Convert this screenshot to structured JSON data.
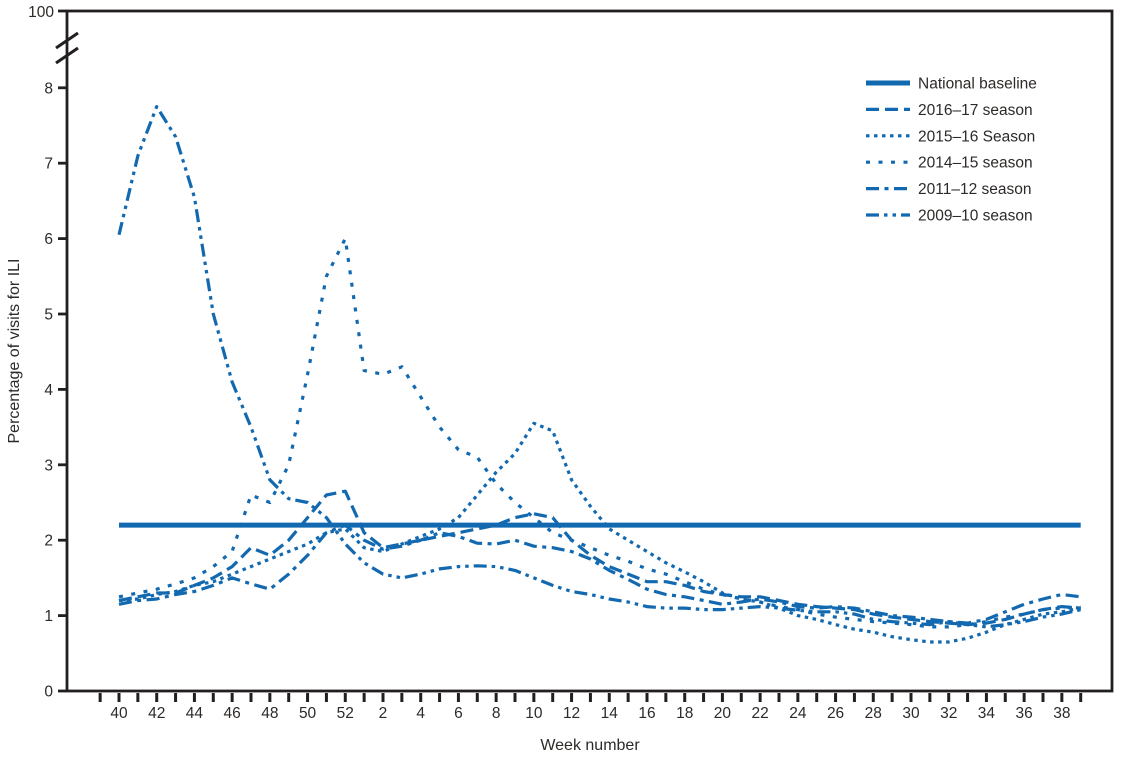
{
  "chart_data": {
    "type": "line",
    "xlabel": "Week number",
    "ylabel": "Percentage of visits for ILI",
    "y_axis_break_top_label": "100",
    "y_ticks": [
      0,
      1,
      2,
      3,
      4,
      5,
      6,
      7,
      8
    ],
    "ylim": [
      0,
      8.6
    ],
    "weeks": [
      "40",
      "41",
      "42",
      "43",
      "44",
      "45",
      "46",
      "47",
      "48",
      "49",
      "50",
      "51",
      "52",
      "1",
      "2",
      "3",
      "4",
      "5",
      "6",
      "7",
      "8",
      "9",
      "10",
      "11",
      "12",
      "13",
      "14",
      "15",
      "16",
      "17",
      "18",
      "19",
      "20",
      "21",
      "22",
      "23",
      "24",
      "25",
      "26",
      "27",
      "28",
      "29",
      "30",
      "31",
      "32",
      "33",
      "34",
      "35",
      "36",
      "37",
      "38",
      "39"
    ],
    "x_tick_labels": [
      "40",
      "42",
      "44",
      "46",
      "48",
      "50",
      "52",
      "2",
      "4",
      "6",
      "8",
      "10",
      "12",
      "14",
      "16",
      "18",
      "20",
      "22",
      "24",
      "26",
      "28",
      "30",
      "32",
      "34",
      "36",
      "38"
    ],
    "legend_position": "top-right",
    "grid": false,
    "colors": {
      "line": "#1269b0",
      "axis": "#231f20",
      "text": "#2d2a28"
    },
    "baseline_value": 2.2,
    "series": [
      {
        "name": "national-baseline",
        "label": "National baseline",
        "style": "solid",
        "constant": 2.2
      },
      {
        "name": "season-2016-17",
        "label": "2016–17 season",
        "style": "dash",
        "values": [
          1.2,
          1.25,
          1.3,
          1.3,
          1.4,
          1.5,
          1.65,
          1.9,
          1.8,
          2.0,
          2.3,
          2.6,
          2.65,
          2.1,
          1.9,
          1.95,
          2.0,
          2.05,
          2.1,
          2.15,
          2.2,
          2.3,
          2.35,
          2.3,
          2.0,
          1.8,
          1.65,
          1.55,
          1.45,
          1.45,
          1.4,
          1.32,
          1.28,
          1.25,
          1.25,
          1.2,
          1.15,
          1.12,
          1.1,
          1.08,
          1.02,
          0.98,
          0.95,
          0.92,
          0.9,
          0.88,
          0.9,
          0.95,
          1.02,
          1.08,
          1.12,
          1.1
        ]
      },
      {
        "name": "season-2015-16",
        "label": "2015–16 Season",
        "style": "dot",
        "values": [
          1.2,
          1.22,
          1.28,
          1.32,
          1.4,
          1.45,
          1.55,
          1.65,
          1.75,
          1.85,
          1.95,
          2.1,
          2.15,
          1.9,
          1.85,
          1.95,
          2.05,
          2.15,
          2.3,
          2.6,
          2.9,
          3.15,
          3.55,
          3.45,
          2.8,
          2.45,
          2.15,
          2.0,
          1.85,
          1.7,
          1.58,
          1.45,
          1.3,
          1.22,
          1.18,
          1.1,
          1.0,
          0.95,
          0.88,
          0.82,
          0.78,
          0.72,
          0.68,
          0.65,
          0.65,
          0.7,
          0.78,
          0.88,
          0.95,
          1.02,
          1.05,
          1.1
        ]
      },
      {
        "name": "season-2014-15",
        "label": "2014–15 season",
        "style": "sparse-dot",
        "values": [
          1.25,
          1.3,
          1.35,
          1.42,
          1.5,
          1.65,
          1.85,
          2.6,
          2.5,
          3.0,
          4.2,
          5.5,
          6.0,
          4.25,
          4.2,
          4.3,
          3.9,
          3.5,
          3.2,
          3.1,
          2.75,
          2.5,
          2.3,
          2.1,
          2.0,
          1.9,
          1.8,
          1.72,
          1.62,
          1.55,
          1.45,
          1.35,
          1.28,
          1.22,
          1.18,
          1.12,
          1.08,
          1.02,
          0.98,
          0.95,
          0.92,
          0.9,
          0.88,
          0.85,
          0.85,
          0.88,
          0.92,
          0.98,
          1.02,
          1.08,
          1.1,
          1.12
        ]
      },
      {
        "name": "season-2011-12",
        "label": "2011–12 season",
        "style": "dash-dot",
        "values": [
          1.15,
          1.2,
          1.22,
          1.28,
          1.32,
          1.4,
          1.5,
          1.42,
          1.35,
          1.55,
          1.8,
          2.1,
          2.2,
          2.0,
          1.88,
          1.92,
          2.0,
          2.1,
          2.05,
          1.96,
          1.95,
          2.0,
          1.92,
          1.9,
          1.85,
          1.75,
          1.6,
          1.48,
          1.35,
          1.28,
          1.25,
          1.2,
          1.15,
          1.18,
          1.22,
          1.18,
          1.12,
          1.1,
          1.12,
          1.1,
          1.05,
          1.0,
          0.98,
          0.95,
          0.92,
          0.9,
          0.95,
          1.05,
          1.15,
          1.22,
          1.28,
          1.25
        ]
      },
      {
        "name": "season-2009-10",
        "label": "2009–10 season",
        "style": "dash-dot-dot",
        "values": [
          6.05,
          7.1,
          7.75,
          7.35,
          6.55,
          5.0,
          4.1,
          3.5,
          2.8,
          2.55,
          2.5,
          2.3,
          1.95,
          1.7,
          1.55,
          1.5,
          1.55,
          1.62,
          1.65,
          1.66,
          1.65,
          1.6,
          1.5,
          1.4,
          1.32,
          1.28,
          1.22,
          1.18,
          1.12,
          1.1,
          1.1,
          1.08,
          1.08,
          1.1,
          1.12,
          1.1,
          1.07,
          1.05,
          1.05,
          1.02,
          0.95,
          0.92,
          0.9,
          0.88,
          0.92,
          0.88,
          0.85,
          0.88,
          0.92,
          0.98,
          1.02,
          1.08
        ]
      }
    ]
  }
}
